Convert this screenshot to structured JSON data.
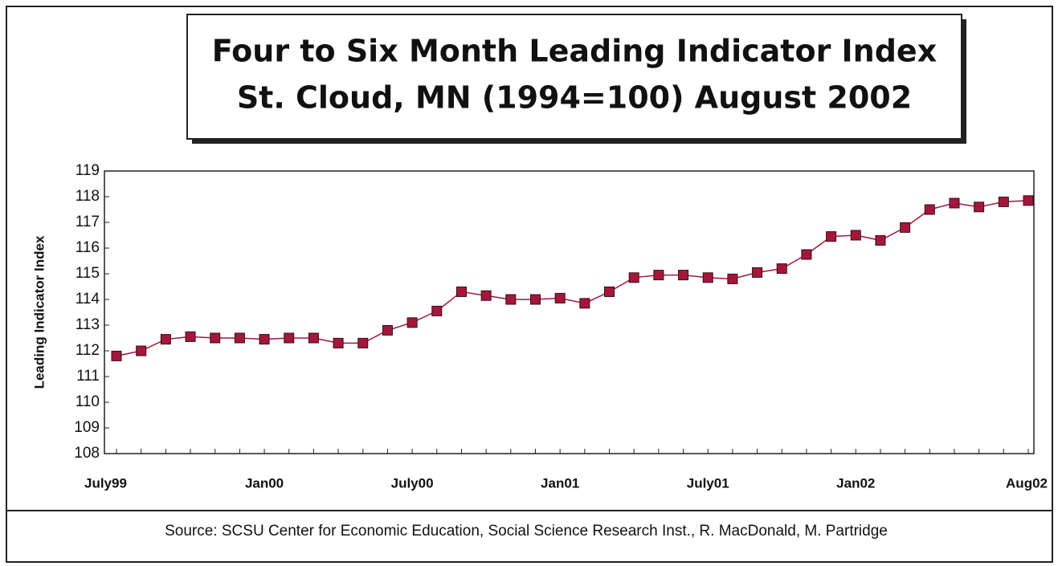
{
  "chart_data": {
    "type": "line",
    "title": "Four to Six Month Leading Indicator Index",
    "subtitle": "St. Cloud, MN (1994=100) August 2002",
    "y_label": "Leading Indicator Index",
    "source": "Source:  SCSU Center for Economic Education, Social Science Research Inst., R. MacDonald, M. Partridge",
    "categories": [
      "July99",
      null,
      null,
      null,
      null,
      null,
      "Jan00",
      null,
      null,
      null,
      null,
      null,
      "July00",
      null,
      null,
      null,
      null,
      null,
      "Jan01",
      null,
      null,
      null,
      null,
      null,
      "July01",
      null,
      null,
      null,
      null,
      null,
      "Jan02",
      null,
      null,
      null,
      null,
      null,
      null,
      "Aug02"
    ],
    "series": [
      {
        "color": "#a3173d",
        "values": [
          111.8,
          112.0,
          112.45,
          112.55,
          112.5,
          112.5,
          112.45,
          112.5,
          112.5,
          112.3,
          112.3,
          112.8,
          113.1,
          113.55,
          114.3,
          114.15,
          114.0,
          114.0,
          114.05,
          113.85,
          114.3,
          114.85,
          114.95,
          114.95,
          114.85,
          114.8,
          115.05,
          115.2,
          115.75,
          116.45,
          116.5,
          116.3,
          116.8,
          117.5,
          117.75,
          117.6,
          117.8,
          117.85
        ]
      }
    ],
    "ylim": [
      108,
      119
    ],
    "yticks": [
      108,
      109,
      110,
      111,
      112,
      113,
      114,
      115,
      116,
      117,
      118,
      119
    ]
  }
}
